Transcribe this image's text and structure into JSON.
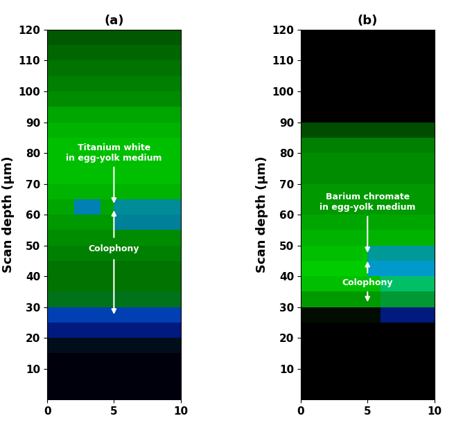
{
  "chart_data": [
    {
      "type": "heatmap",
      "title": "(a)",
      "y_label": "Scan depth (µm)",
      "xlim": [
        0,
        10
      ],
      "xticks": [
        0,
        5,
        10
      ],
      "ylim": [
        0,
        120
      ],
      "yticks": [
        10,
        20,
        30,
        40,
        50,
        60,
        70,
        80,
        90,
        100,
        110,
        120
      ],
      "x_edges": [
        0,
        1,
        2,
        3,
        4,
        5,
        6,
        7,
        8,
        9,
        10
      ],
      "y_edges": [
        0,
        5,
        10,
        15,
        20,
        25,
        30,
        35,
        40,
        45,
        50,
        55,
        60,
        65,
        70,
        75,
        80,
        85,
        90,
        95,
        100,
        105,
        110,
        115,
        120
      ],
      "green": [
        [
          0,
          0,
          0,
          0,
          0,
          0,
          0,
          0,
          0,
          0
        ],
        [
          0,
          0,
          0,
          0,
          0,
          0,
          0,
          0,
          0,
          0
        ],
        [
          0,
          0,
          0,
          0,
          0,
          0,
          0,
          0,
          0,
          0
        ],
        [
          0.05,
          0.05,
          0.05,
          0.05,
          0.05,
          0.05,
          0.05,
          0.05,
          0.05,
          0.05
        ],
        [
          0.1,
          0.1,
          0.1,
          0.1,
          0.1,
          0.1,
          0.1,
          0.1,
          0.1,
          0.1
        ],
        [
          0.25,
          0.25,
          0.25,
          0.25,
          0.25,
          0.25,
          0.25,
          0.25,
          0.25,
          0.25
        ],
        [
          0.45,
          0.45,
          0.45,
          0.45,
          0.45,
          0.45,
          0.45,
          0.45,
          0.45,
          0.45
        ],
        [
          0.45,
          0.45,
          0.45,
          0.45,
          0.45,
          0.45,
          0.45,
          0.45,
          0.45,
          0.45
        ],
        [
          0.45,
          0.45,
          0.45,
          0.45,
          0.45,
          0.45,
          0.45,
          0.45,
          0.45,
          0.45
        ],
        [
          0.5,
          0.5,
          0.5,
          0.5,
          0.5,
          0.5,
          0.5,
          0.5,
          0.5,
          0.5
        ],
        [
          0.55,
          0.55,
          0.55,
          0.55,
          0.55,
          0.55,
          0.55,
          0.55,
          0.55,
          0.55
        ],
        [
          0.6,
          0.6,
          0.6,
          0.6,
          0.6,
          0.5,
          0.5,
          0.5,
          0.5,
          0.5
        ],
        [
          0.65,
          0.65,
          0.5,
          0.5,
          0.65,
          0.55,
          0.55,
          0.55,
          0.55,
          0.55
        ],
        [
          0.7,
          0.7,
          0.7,
          0.7,
          0.7,
          0.7,
          0.7,
          0.7,
          0.7,
          0.7
        ],
        [
          0.75,
          0.75,
          0.75,
          0.75,
          0.75,
          0.75,
          0.75,
          0.75,
          0.75,
          0.75
        ],
        [
          0.75,
          0.75,
          0.75,
          0.75,
          0.75,
          0.75,
          0.75,
          0.75,
          0.75,
          0.75
        ],
        [
          0.75,
          0.75,
          0.75,
          0.75,
          0.75,
          0.75,
          0.75,
          0.75,
          0.75,
          0.75
        ],
        [
          0.7,
          0.7,
          0.7,
          0.7,
          0.7,
          0.7,
          0.7,
          0.7,
          0.7,
          0.7
        ],
        [
          0.65,
          0.65,
          0.65,
          0.65,
          0.65,
          0.65,
          0.65,
          0.65,
          0.65,
          0.65
        ],
        [
          0.55,
          0.55,
          0.55,
          0.55,
          0.55,
          0.55,
          0.55,
          0.55,
          0.55,
          0.55
        ],
        [
          0.5,
          0.5,
          0.5,
          0.5,
          0.5,
          0.5,
          0.5,
          0.5,
          0.5,
          0.5
        ],
        [
          0.45,
          0.45,
          0.45,
          0.45,
          0.45,
          0.45,
          0.45,
          0.45,
          0.45,
          0.45
        ],
        [
          0.4,
          0.4,
          0.4,
          0.4,
          0.4,
          0.4,
          0.4,
          0.4,
          0.4,
          0.4
        ],
        [
          0.35,
          0.35,
          0.35,
          0.35,
          0.35,
          0.35,
          0.35,
          0.35,
          0.35,
          0.35
        ]
      ],
      "blue": [
        [
          0.05,
          0.05,
          0.05,
          0.05,
          0.05,
          0.05,
          0.05,
          0.05,
          0.05,
          0.05
        ],
        [
          0.05,
          0.05,
          0.05,
          0.05,
          0.05,
          0.05,
          0.05,
          0.05,
          0.05,
          0.05
        ],
        [
          0.05,
          0.05,
          0.05,
          0.05,
          0.05,
          0.05,
          0.05,
          0.05,
          0.05,
          0.05
        ],
        [
          0.1,
          0.1,
          0.1,
          0.1,
          0.1,
          0.1,
          0.1,
          0.1,
          0.1,
          0.1
        ],
        [
          0.5,
          0.5,
          0.5,
          0.5,
          0.5,
          0.5,
          0.5,
          0.5,
          0.5,
          0.5
        ],
        [
          0.7,
          0.7,
          0.7,
          0.7,
          0.7,
          0.7,
          0.7,
          0.7,
          0.7,
          0.7
        ],
        [
          0.1,
          0.1,
          0.1,
          0.1,
          0.1,
          0.1,
          0.1,
          0.1,
          0.1,
          0.1
        ],
        [
          0,
          0,
          0,
          0,
          0,
          0,
          0,
          0,
          0,
          0
        ],
        [
          0,
          0,
          0,
          0,
          0,
          0,
          0,
          0,
          0,
          0
        ],
        [
          0,
          0,
          0,
          0,
          0,
          0,
          0,
          0,
          0,
          0
        ],
        [
          0,
          0,
          0,
          0,
          0,
          0,
          0,
          0,
          0,
          0
        ],
        [
          0,
          0,
          0,
          0,
          0,
          0.6,
          0.6,
          0.6,
          0.6,
          0.6
        ],
        [
          0,
          0,
          0.7,
          0.7,
          0,
          0.6,
          0.6,
          0.6,
          0.6,
          0.6
        ],
        [
          0,
          0,
          0,
          0,
          0,
          0,
          0,
          0,
          0,
          0
        ],
        [
          0,
          0,
          0,
          0,
          0,
          0,
          0,
          0,
          0,
          0
        ],
        [
          0,
          0,
          0,
          0,
          0,
          0,
          0,
          0,
          0,
          0
        ],
        [
          0,
          0,
          0,
          0,
          0,
          0,
          0,
          0,
          0,
          0
        ],
        [
          0,
          0,
          0,
          0,
          0,
          0,
          0,
          0,
          0,
          0
        ],
        [
          0,
          0,
          0,
          0,
          0,
          0,
          0,
          0,
          0,
          0
        ],
        [
          0,
          0,
          0,
          0,
          0,
          0,
          0,
          0,
          0,
          0
        ],
        [
          0,
          0,
          0,
          0,
          0,
          0,
          0,
          0,
          0,
          0
        ],
        [
          0,
          0,
          0,
          0,
          0,
          0,
          0,
          0,
          0,
          0
        ],
        [
          0,
          0,
          0,
          0,
          0,
          0,
          0,
          0,
          0,
          0
        ],
        [
          0,
          0,
          0,
          0,
          0,
          0,
          0,
          0,
          0,
          0
        ]
      ],
      "annotations": [
        {
          "text": "Titanium white\nin egg-yolk medium",
          "x": 5,
          "y": 80,
          "arrows": [
            {
              "from": [
                5,
                76
              ],
              "to": [
                5,
                63
              ]
            }
          ]
        },
        {
          "text": "Colophony",
          "x": 5,
          "y": 49,
          "arrows": [
            {
              "from": [
                5,
                52
              ],
              "to": [
                5,
                62
              ]
            },
            {
              "from": [
                5,
                46
              ],
              "to": [
                5,
                27
              ]
            }
          ]
        }
      ]
    },
    {
      "type": "heatmap",
      "title": "(b)",
      "y_label": "Scan depth (µm)",
      "xlim": [
        0,
        10
      ],
      "xticks": [
        0,
        5,
        10
      ],
      "ylim": [
        0,
        120
      ],
      "yticks": [
        10,
        20,
        30,
        40,
        50,
        60,
        70,
        80,
        90,
        100,
        110,
        120
      ],
      "x_edges": [
        0,
        1,
        2,
        3,
        4,
        5,
        6,
        7,
        8,
        9,
        10
      ],
      "y_edges": [
        0,
        5,
        10,
        15,
        20,
        25,
        30,
        35,
        40,
        45,
        50,
        55,
        60,
        65,
        70,
        75,
        80,
        85,
        90,
        95,
        100,
        105,
        110,
        115,
        120
      ],
      "green": [
        [
          0,
          0,
          0,
          0,
          0,
          0,
          0,
          0,
          0,
          0
        ],
        [
          0,
          0,
          0,
          0,
          0,
          0,
          0,
          0,
          0,
          0
        ],
        [
          0,
          0,
          0,
          0,
          0,
          0,
          0,
          0,
          0,
          0
        ],
        [
          0,
          0,
          0,
          0,
          0,
          0,
          0,
          0,
          0,
          0
        ],
        [
          0,
          0,
          0,
          0,
          0,
          0,
          0,
          0,
          0,
          0
        ],
        [
          0.05,
          0.05,
          0.05,
          0.05,
          0.05,
          0.05,
          0.1,
          0.1,
          0.1,
          0.1
        ],
        [
          0.6,
          0.6,
          0.6,
          0.6,
          0.6,
          0.6,
          0.6,
          0.6,
          0.6,
          0.6
        ],
        [
          0.75,
          0.75,
          0.75,
          0.75,
          0.75,
          0.75,
          0.75,
          0.75,
          0.75,
          0.75
        ],
        [
          0.8,
          0.8,
          0.8,
          0.8,
          0.8,
          0.6,
          0.6,
          0.6,
          0.6,
          0.6
        ],
        [
          0.75,
          0.75,
          0.75,
          0.75,
          0.75,
          0.6,
          0.6,
          0.6,
          0.6,
          0.6
        ],
        [
          0.7,
          0.7,
          0.7,
          0.7,
          0.7,
          0.7,
          0.7,
          0.7,
          0.7,
          0.7
        ],
        [
          0.65,
          0.65,
          0.65,
          0.65,
          0.65,
          0.65,
          0.65,
          0.65,
          0.65,
          0.65
        ],
        [
          0.6,
          0.6,
          0.6,
          0.6,
          0.6,
          0.6,
          0.6,
          0.6,
          0.6,
          0.6
        ],
        [
          0.6,
          0.6,
          0.6,
          0.6,
          0.6,
          0.6,
          0.6,
          0.6,
          0.6,
          0.6
        ],
        [
          0.55,
          0.55,
          0.55,
          0.55,
          0.55,
          0.55,
          0.55,
          0.55,
          0.55,
          0.55
        ],
        [
          0.55,
          0.55,
          0.55,
          0.55,
          0.55,
          0.55,
          0.55,
          0.55,
          0.55,
          0.55
        ],
        [
          0.5,
          0.5,
          0.5,
          0.5,
          0.5,
          0.5,
          0.5,
          0.5,
          0.5,
          0.5
        ],
        [
          0.3,
          0.3,
          0.3,
          0.3,
          0.3,
          0.3,
          0.3,
          0.3,
          0.3,
          0.3
        ],
        [
          0,
          0,
          0,
          0,
          0,
          0,
          0,
          0,
          0,
          0
        ],
        [
          0,
          0,
          0,
          0,
          0,
          0,
          0,
          0,
          0,
          0
        ],
        [
          0,
          0,
          0,
          0,
          0,
          0,
          0,
          0,
          0,
          0
        ],
        [
          0,
          0,
          0,
          0,
          0,
          0,
          0,
          0,
          0,
          0
        ],
        [
          0,
          0,
          0,
          0,
          0,
          0,
          0,
          0,
          0,
          0
        ],
        [
          0,
          0,
          0,
          0,
          0,
          0,
          0,
          0,
          0,
          0
        ]
      ],
      "blue": [
        [
          0,
          0,
          0,
          0,
          0,
          0,
          0,
          0,
          0,
          0
        ],
        [
          0,
          0,
          0,
          0,
          0,
          0,
          0,
          0,
          0,
          0
        ],
        [
          0,
          0,
          0,
          0,
          0,
          0,
          0,
          0,
          0,
          0
        ],
        [
          0,
          0,
          0,
          0,
          0,
          0,
          0,
          0,
          0,
          0
        ],
        [
          0,
          0,
          0,
          0,
          0,
          0,
          0,
          0,
          0,
          0
        ],
        [
          0,
          0,
          0,
          0,
          0,
          0,
          0.5,
          0.5,
          0.5,
          0.5
        ],
        [
          0,
          0,
          0,
          0,
          0,
          0,
          0.2,
          0.2,
          0.2,
          0.2
        ],
        [
          0,
          0,
          0,
          0,
          0,
          0,
          0.4,
          0.4,
          0.4,
          0.4
        ],
        [
          0,
          0,
          0,
          0,
          0,
          0.8,
          0.8,
          0.8,
          0.8,
          0.8
        ],
        [
          0,
          0,
          0,
          0,
          0,
          0.6,
          0.6,
          0.6,
          0.6,
          0.6
        ],
        [
          0,
          0,
          0,
          0,
          0,
          0,
          0,
          0,
          0,
          0
        ],
        [
          0,
          0,
          0,
          0,
          0,
          0,
          0,
          0,
          0,
          0
        ],
        [
          0,
          0,
          0,
          0,
          0,
          0,
          0,
          0,
          0,
          0
        ],
        [
          0,
          0,
          0,
          0,
          0,
          0,
          0,
          0,
          0,
          0
        ],
        [
          0,
          0,
          0,
          0,
          0,
          0,
          0,
          0,
          0,
          0
        ],
        [
          0,
          0,
          0,
          0,
          0,
          0,
          0,
          0,
          0,
          0
        ],
        [
          0,
          0,
          0,
          0,
          0,
          0,
          0,
          0,
          0,
          0
        ],
        [
          0,
          0,
          0,
          0,
          0,
          0,
          0,
          0,
          0,
          0
        ],
        [
          0,
          0,
          0,
          0,
          0,
          0,
          0,
          0,
          0,
          0
        ],
        [
          0,
          0,
          0,
          0,
          0,
          0,
          0,
          0,
          0,
          0
        ],
        [
          0,
          0,
          0,
          0,
          0,
          0,
          0,
          0,
          0,
          0
        ],
        [
          0,
          0,
          0,
          0,
          0,
          0,
          0,
          0,
          0,
          0
        ],
        [
          0,
          0,
          0,
          0,
          0,
          0,
          0,
          0,
          0,
          0
        ],
        [
          0,
          0,
          0,
          0,
          0,
          0,
          0,
          0,
          0,
          0
        ]
      ],
      "annotations": [
        {
          "text": "Barium chromate\nin egg-yolk medium",
          "x": 5,
          "y": 64,
          "arrows": [
            {
              "from": [
                5,
                60
              ],
              "to": [
                5,
                47
              ]
            }
          ]
        },
        {
          "text": "Colophony",
          "x": 5,
          "y": 38,
          "arrows": [
            {
              "from": [
                5,
                40.5
              ],
              "to": [
                5,
                45.5
              ]
            },
            {
              "from": [
                5,
                35.5
              ],
              "to": [
                5,
                31
              ]
            }
          ]
        }
      ]
    }
  ]
}
